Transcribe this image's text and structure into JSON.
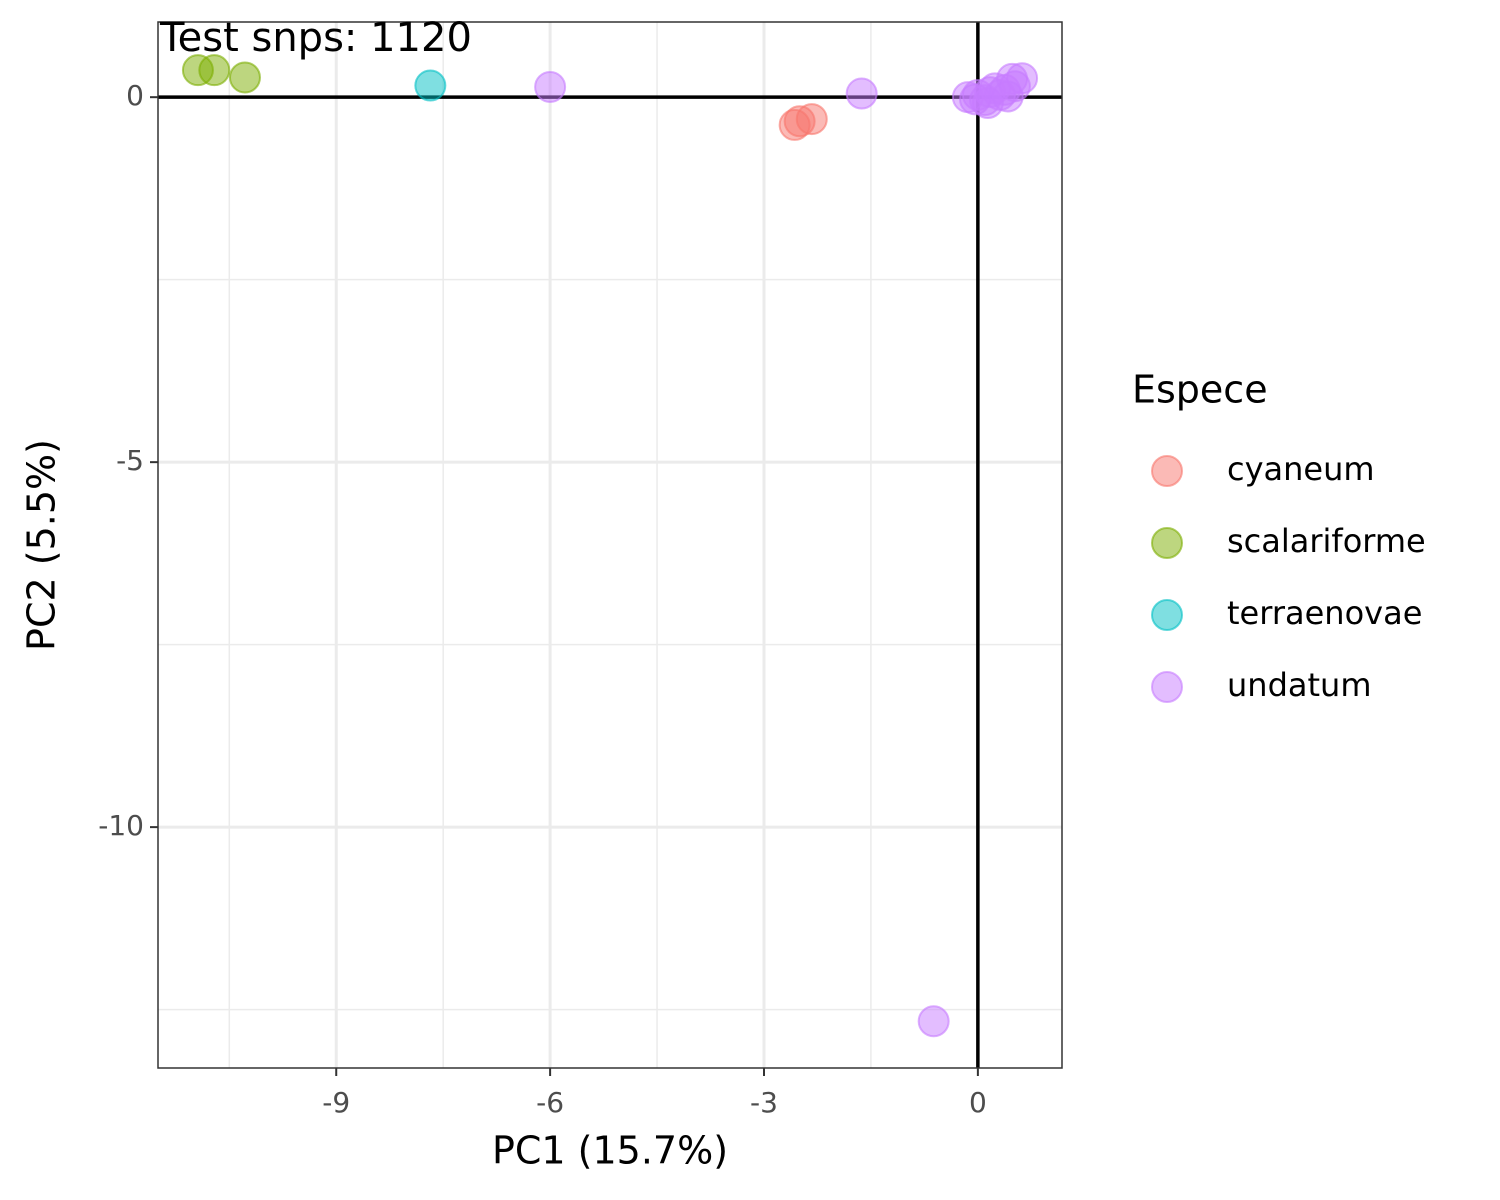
{
  "chart_data": {
    "type": "scatter",
    "annotation": "Test snps: 1120",
    "x_label": "PC1 (15.7%)",
    "y_label": "PC2 (5.5%)",
    "legend_title": "Espece",
    "legend_position": "right",
    "grid": true,
    "xlim": [
      -11.5,
      1.18
    ],
    "ylim": [
      -13.3,
      1.03
    ],
    "xticks": [
      -9,
      -6,
      -3,
      0
    ],
    "yticks": [
      -10,
      -5,
      0
    ],
    "x_minor_grid": [
      -10.5,
      -7.5,
      -4.5,
      -1.5
    ],
    "y_minor_grid": [
      -12.5,
      -7.5,
      -2.5
    ],
    "hlines": [
      0
    ],
    "vlines": [
      0
    ],
    "series": [
      {
        "name": "cyaneum",
        "color": "#f8766d",
        "x": [
          -2.57,
          -2.5,
          -2.33
        ],
        "y": [
          -0.38,
          -0.33,
          -0.3
        ]
      },
      {
        "name": "scalariforme",
        "color": "#7cae00",
        "x": [
          -10.94,
          -10.71,
          -10.28
        ],
        "y": [
          0.37,
          0.37,
          0.27
        ]
      },
      {
        "name": "terraenovae",
        "color": "#00bfc4",
        "x": [
          -7.68
        ],
        "y": [
          0.16
        ]
      },
      {
        "name": "undatum",
        "color": "#c77cff",
        "x": [
          -6.0,
          -1.63,
          -0.62,
          -0.14,
          0,
          0.1,
          0.17,
          0.24,
          0.31,
          0.38,
          0.48,
          0.62,
          0.52,
          0.14,
          -0.04,
          0.42
        ],
        "y": [
          0.14,
          0.05,
          -12.66,
          0,
          0.03,
          -0.04,
          0.07,
          0.12,
          0.03,
          0.1,
          0.25,
          0.26,
          0.15,
          -0.08,
          -0.03,
          0.01
        ]
      }
    ]
  }
}
